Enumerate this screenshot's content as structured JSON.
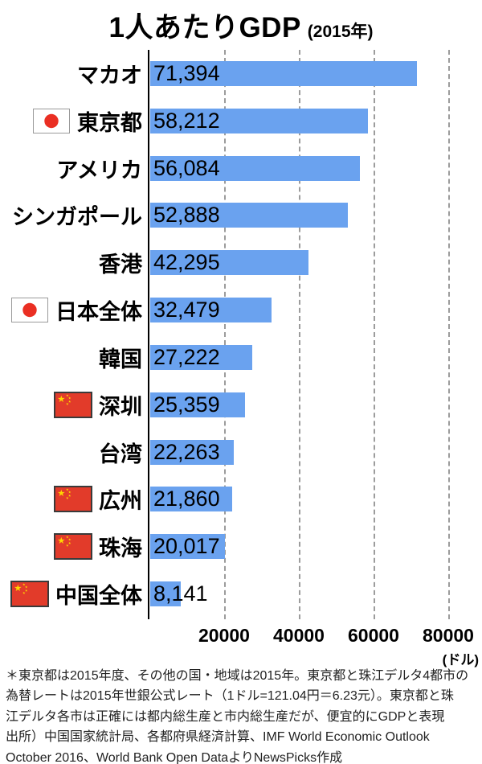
{
  "chart_data": {
    "type": "bar",
    "orientation": "horizontal",
    "title": "1人あたりGDP",
    "subtitle": "(2015年)",
    "categories": [
      "マカオ",
      "東京都",
      "アメリカ",
      "シンガポール",
      "香港",
      "日本全体",
      "韓国",
      "深圳",
      "台湾",
      "広州",
      "珠海",
      "中国全体"
    ],
    "values": [
      71394,
      58212,
      56084,
      52888,
      42295,
      32479,
      27222,
      25359,
      22263,
      21860,
      20017,
      8141
    ],
    "value_labels": [
      "71,394",
      "58,212",
      "56,084",
      "52,888",
      "42,295",
      "32,479",
      "27,222",
      "25,359",
      "22,263",
      "21,860",
      "20,017",
      "8,141"
    ],
    "flags": [
      null,
      "japan",
      null,
      null,
      null,
      "japan",
      null,
      "china",
      null,
      "china",
      "china",
      "china"
    ],
    "x_ticks": [
      20000,
      40000,
      60000,
      80000
    ],
    "x_tick_labels": [
      "20000",
      "40000",
      "60000",
      "80000"
    ],
    "xlim": [
      0,
      88200
    ],
    "unit_label": "(ドル)",
    "grid": true,
    "legend": false
  },
  "footnote": {
    "lines": [
      "＊東京都は2015年度、その他の国・地域は2015年。東京都と珠江デルタ4都市の",
      "為替レートは2015年世銀公式レート（1ドル=121.04円＝6.23元）。東京都と珠",
      "江デルタ各市は正確には都内総生産と市内総生産だが、便宜的にGDPと表現",
      "出所）中国国家統計局、各都府県経済計算、IMF World Economic Outlook",
      "October 2016、World Bank Open DataよりNewsPicks作成"
    ]
  },
  "colors": {
    "bar": "#6aa2ef",
    "axis": "#000000",
    "gridline": "#9c9c9c",
    "japan_flag_white": "#ffffff",
    "japan_flag_red": "#ea2f23",
    "china_flag_red": "#e23b2a",
    "china_flag_yellow": "#ffd800",
    "footnote_text": "#222222"
  }
}
